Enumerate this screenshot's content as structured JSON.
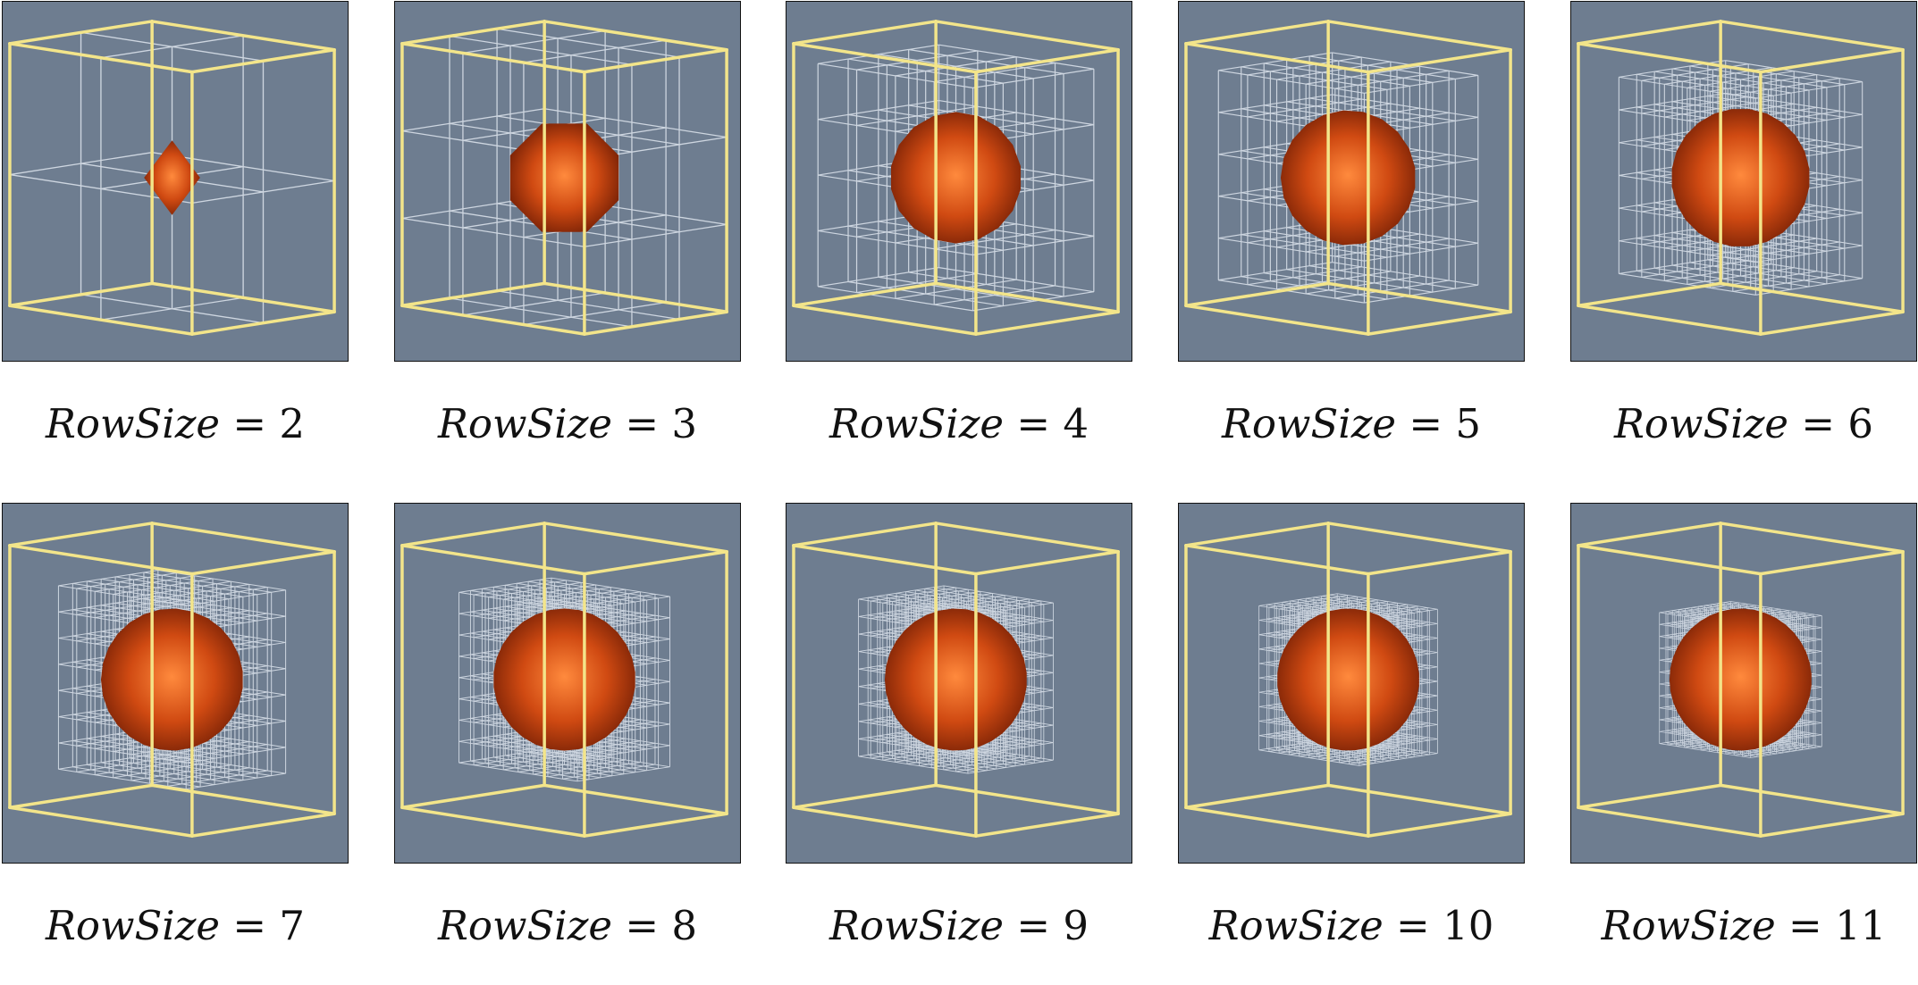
{
  "figure": {
    "label_name": "RowSize",
    "label_equals": "=",
    "panels": [
      {
        "row_size": "2"
      },
      {
        "row_size": "3"
      },
      {
        "row_size": "4"
      },
      {
        "row_size": "5"
      },
      {
        "row_size": "6"
      },
      {
        "row_size": "7"
      },
      {
        "row_size": "8"
      },
      {
        "row_size": "9"
      },
      {
        "row_size": "10"
      },
      {
        "row_size": "11"
      }
    ]
  },
  "colors": {
    "background": "#6e7d90",
    "bounding_box": "#f3e58a",
    "grid_lines": "#dfe6ef",
    "sphere_center": "#ff8a3d",
    "sphere_mid": "#d04a12",
    "sphere_edge": "#7a2206"
  },
  "icons": {
    "bounding_box": "yellow-wireframe-cube",
    "sphere": "orange-sphere",
    "cells": "white-grid-cells"
  }
}
